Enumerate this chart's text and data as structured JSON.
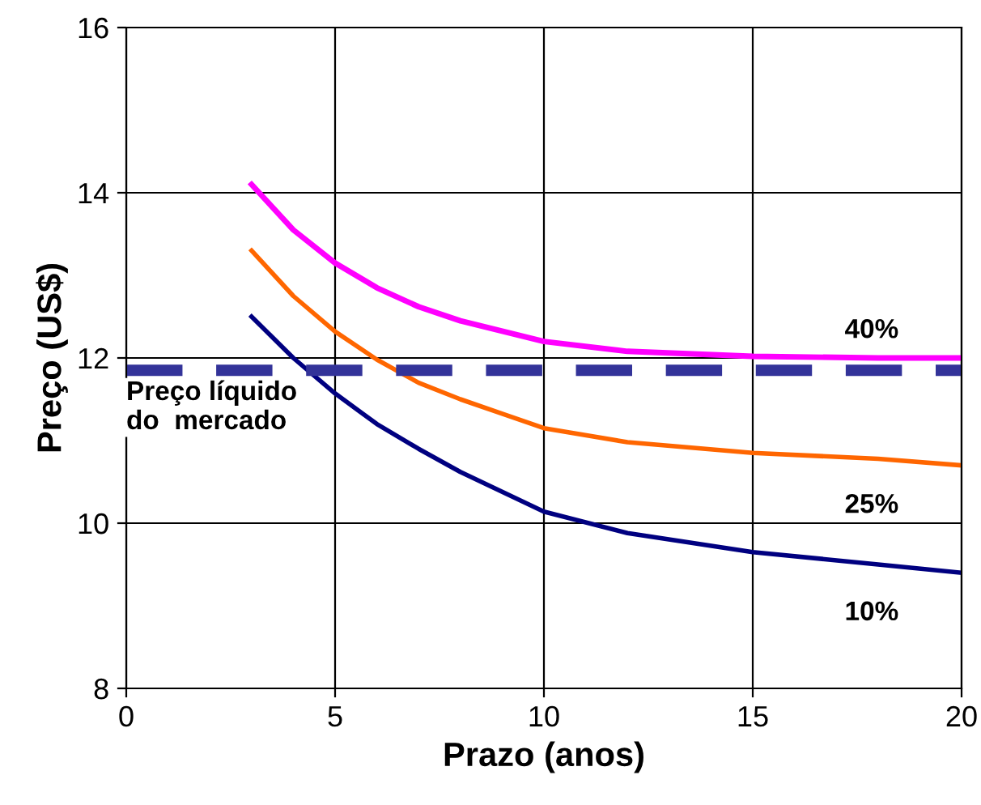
{
  "chart_data": {
    "type": "line",
    "xlabel": "Prazo (anos)",
    "ylabel": "Preço (US$)",
    "xlim": [
      0,
      20
    ],
    "xticks": [
      0,
      5,
      10,
      15,
      20
    ],
    "ylim": [
      8,
      16
    ],
    "yticks": [
      8,
      10,
      12,
      14,
      16
    ],
    "grid": true,
    "legend": false,
    "marker": "none",
    "line_style": "solid",
    "series": [
      {
        "name": "40%",
        "color": "#ff00ff",
        "x": [
          3,
          4,
          5,
          6,
          7,
          8,
          10,
          12,
          15,
          18,
          20
        ],
        "values": [
          14.1,
          13.55,
          13.15,
          12.85,
          12.62,
          12.45,
          12.2,
          12.08,
          12.02,
          12.0,
          12.0
        ]
      },
      {
        "name": "25%",
        "color": "#ff6600",
        "x": [
          3,
          4,
          5,
          6,
          7,
          8,
          10,
          12,
          15,
          18,
          20
        ],
        "values": [
          13.3,
          12.75,
          12.32,
          11.98,
          11.7,
          11.5,
          11.15,
          10.98,
          10.85,
          10.78,
          10.7
        ]
      },
      {
        "name": "10%",
        "color": "#000080",
        "x": [
          3,
          4,
          5,
          6,
          7,
          8,
          10,
          12,
          15,
          18,
          20
        ],
        "values": [
          12.5,
          12.0,
          11.57,
          11.2,
          10.9,
          10.62,
          10.14,
          9.88,
          9.65,
          9.5,
          9.4
        ]
      }
    ],
    "ref_lines": [
      {
        "axis": "y",
        "value": 11.85,
        "label": "Preço líquido\ndo  mercado",
        "color": "#333399",
        "line_style": "dashed"
      }
    ]
  }
}
